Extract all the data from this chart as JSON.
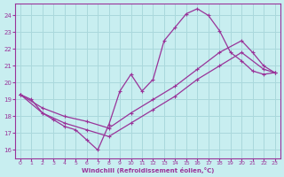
{
  "background_color": "#c8eef0",
  "grid_color": "#aad8dc",
  "line_color": "#993399",
  "xlabel": "Windchill (Refroidissement éolien,°C)",
  "xlim": [
    -0.5,
    23.5
  ],
  "ylim": [
    15.5,
    24.7
  ],
  "yticks": [
    16,
    17,
    18,
    19,
    20,
    21,
    22,
    23,
    24
  ],
  "xticks": [
    0,
    1,
    2,
    3,
    4,
    5,
    6,
    7,
    8,
    9,
    10,
    11,
    12,
    13,
    14,
    15,
    16,
    17,
    18,
    19,
    20,
    21,
    22,
    23
  ],
  "line1_x": [
    0,
    1,
    2,
    3,
    4,
    5,
    6,
    7,
    8,
    9,
    10,
    11,
    12,
    13,
    14,
    15,
    16,
    17,
    18,
    19,
    20,
    21,
    22,
    23
  ],
  "line1_y": [
    19.3,
    19.0,
    18.2,
    17.8,
    17.4,
    17.2,
    16.6,
    16.0,
    17.5,
    19.5,
    20.5,
    19.5,
    20.2,
    22.5,
    23.3,
    24.1,
    24.4,
    24.0,
    23.1,
    21.8,
    21.3,
    20.7,
    20.5,
    20.6
  ],
  "line2_x": [
    0,
    2,
    4,
    6,
    8,
    10,
    12,
    14,
    16,
    18,
    20,
    21,
    22,
    23
  ],
  "line2_y": [
    19.3,
    18.5,
    18.0,
    17.7,
    17.3,
    18.2,
    19.0,
    19.8,
    20.8,
    21.8,
    22.5,
    21.8,
    21.0,
    20.6
  ],
  "line3_x": [
    0,
    2,
    4,
    6,
    8,
    10,
    12,
    14,
    16,
    18,
    20,
    22,
    23
  ],
  "line3_y": [
    19.3,
    18.2,
    17.6,
    17.2,
    16.8,
    17.6,
    18.4,
    19.2,
    20.2,
    21.0,
    21.8,
    20.8,
    20.6
  ]
}
